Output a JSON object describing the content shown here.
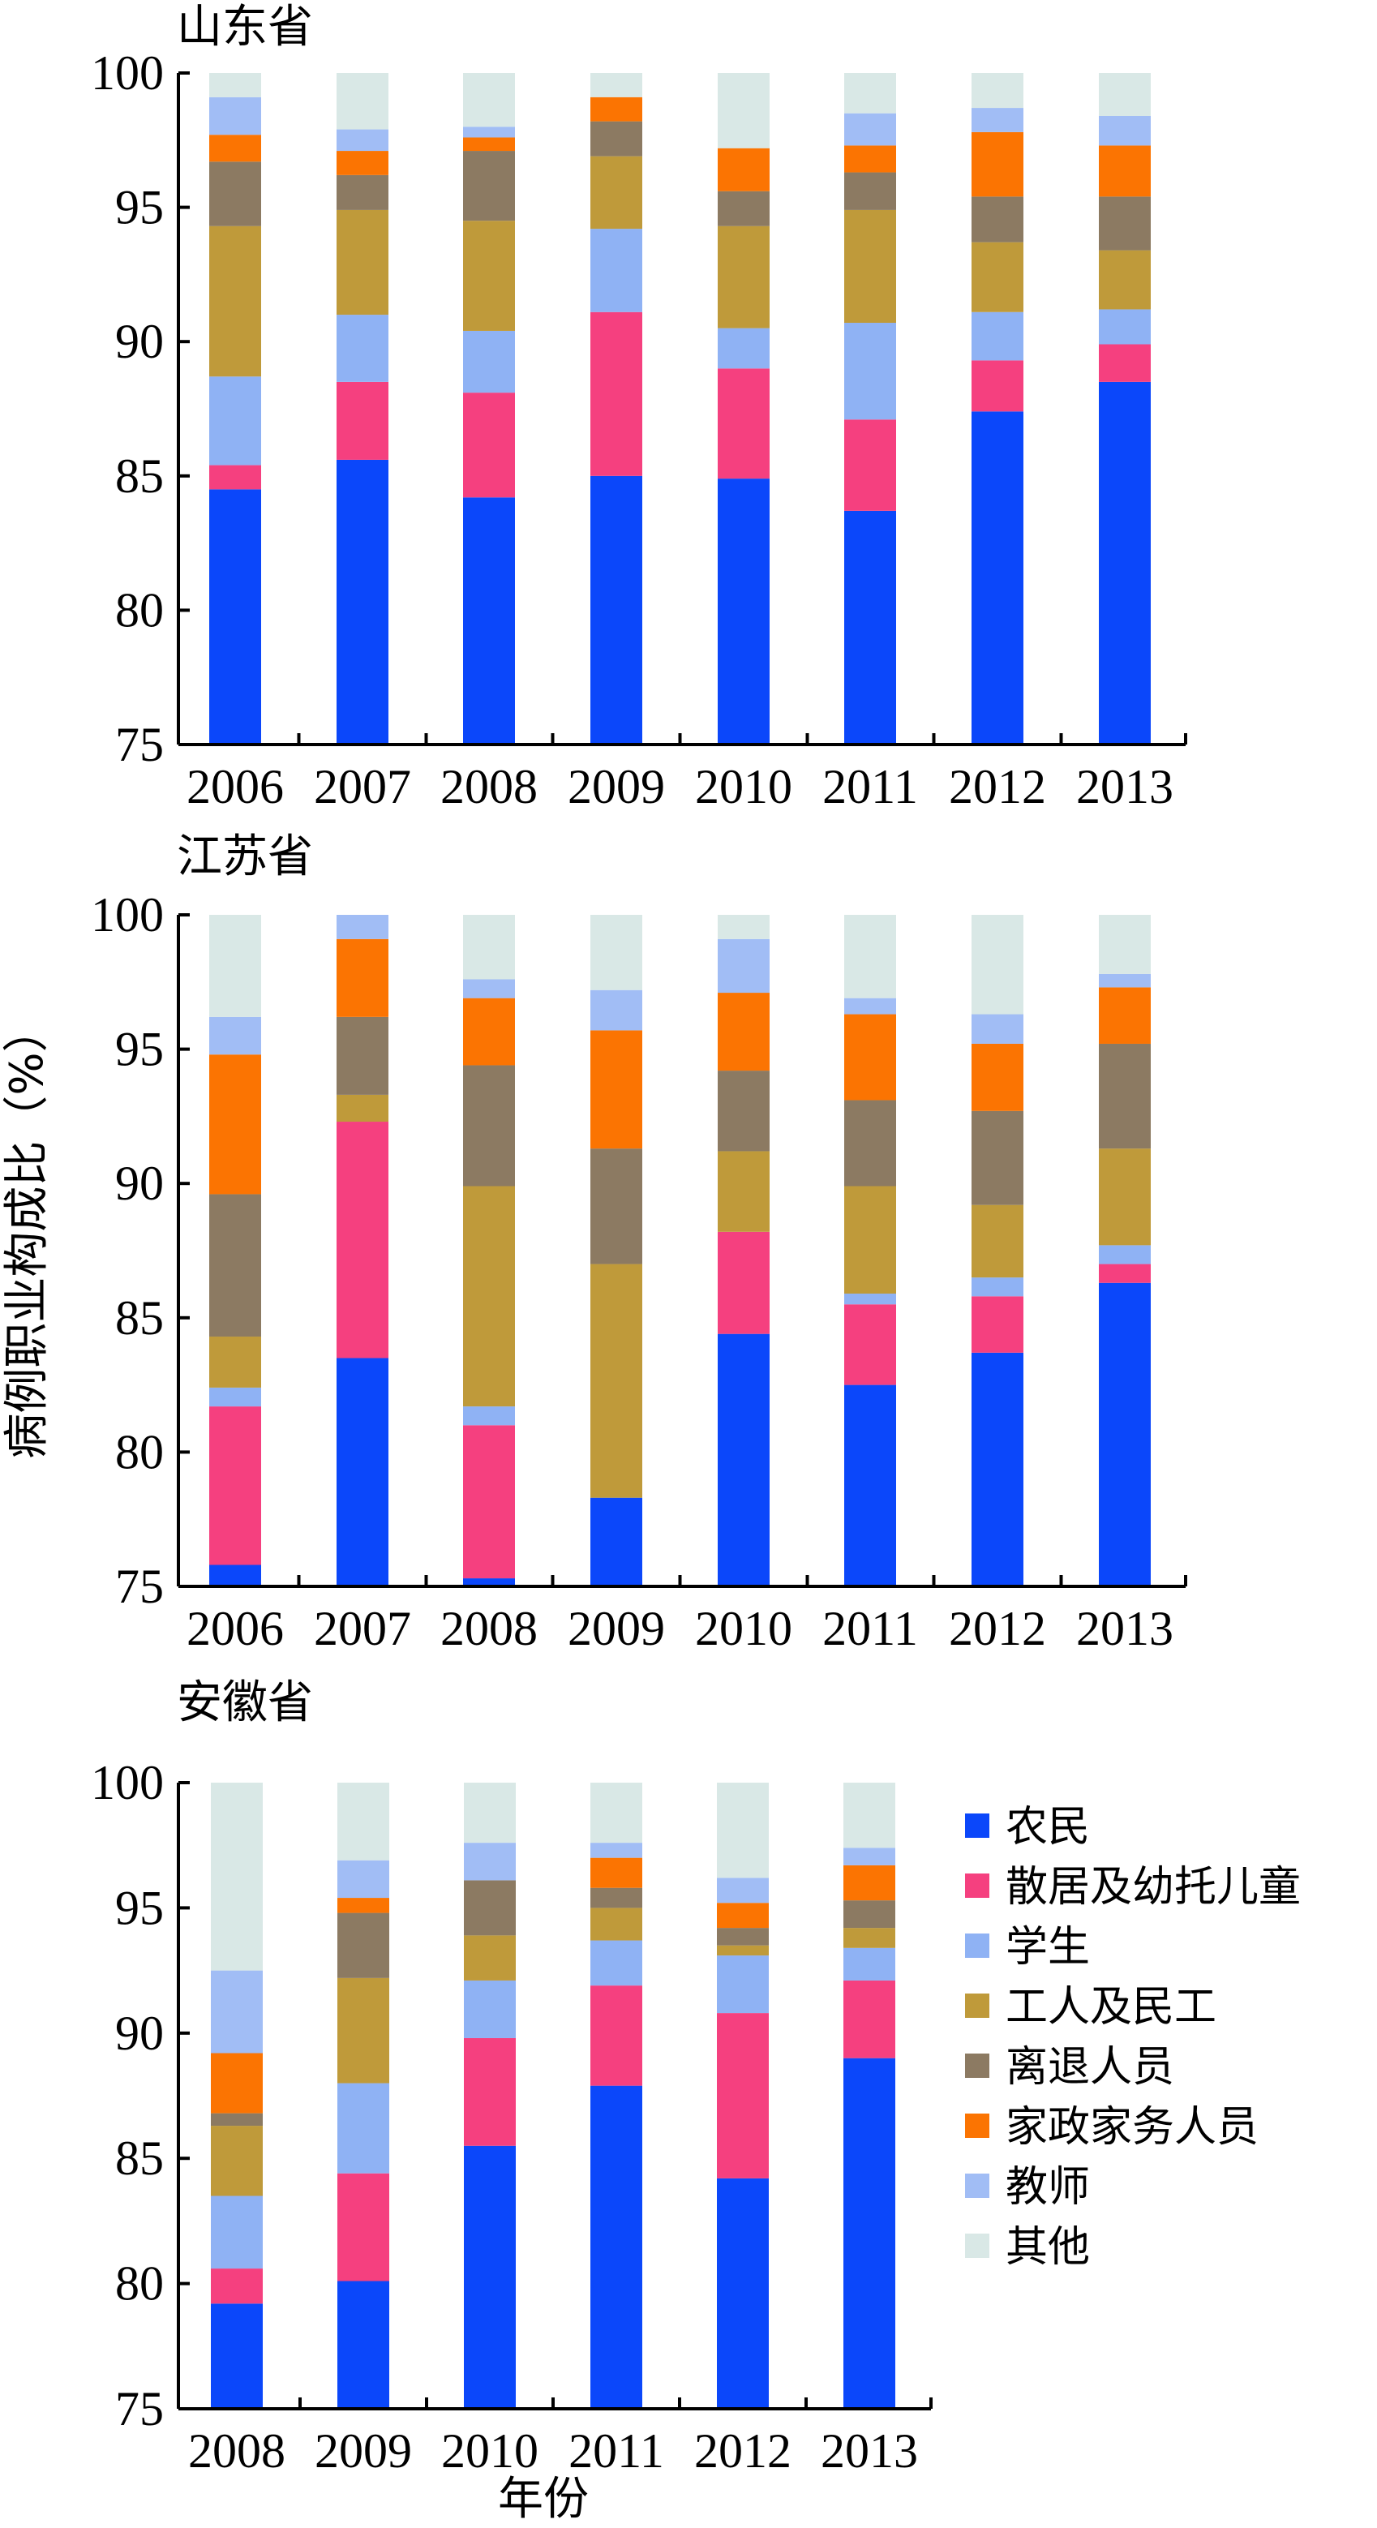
{
  "y_axis_label": "病例职业构成比（%）",
  "x_axis_label": "年份",
  "categories": [
    {
      "name": "农民",
      "color": "#0b47fa"
    },
    {
      "name": "散居及幼托儿童",
      "color": "#f5407f"
    },
    {
      "name": "学生",
      "color": "#8fb2f4"
    },
    {
      "name": "工人及民工",
      "color": "#bf9a3a"
    },
    {
      "name": "离退人员",
      "color": "#8c7a62"
    },
    {
      "name": "家政家务人员",
      "color": "#fb7402"
    },
    {
      "name": "教师",
      "color": "#a1bdf5"
    },
    {
      "name": "其他",
      "color": "#d9e8e6"
    }
  ],
  "chart_data": [
    {
      "type": "bar",
      "stacked": true,
      "title": "山东省",
      "ylim": [
        75,
        100
      ],
      "yticks": [
        "75",
        "80",
        "85",
        "90",
        "95",
        "100"
      ],
      "categories": [
        "2006",
        "2007",
        "2008",
        "2009",
        "2010",
        "2011",
        "2012",
        "2013"
      ],
      "series": [
        {
          "name": "农民",
          "cumulative": [
            84.5,
            85.6,
            84.2,
            85.0,
            84.9,
            83.7,
            87.4,
            88.5
          ]
        },
        {
          "name": "散居及幼托儿童",
          "cumulative": [
            85.4,
            88.5,
            88.1,
            91.1,
            89.0,
            87.1,
            89.3,
            89.9
          ]
        },
        {
          "name": "学生",
          "cumulative": [
            88.7,
            91.0,
            90.4,
            94.2,
            90.5,
            90.7,
            91.1,
            91.2
          ]
        },
        {
          "name": "工人及民工",
          "cumulative": [
            94.3,
            94.9,
            94.5,
            96.9,
            94.3,
            94.9,
            93.7,
            93.4
          ]
        },
        {
          "name": "离退人员",
          "cumulative": [
            96.7,
            96.2,
            97.1,
            98.2,
            95.6,
            96.3,
            95.4,
            95.4
          ]
        },
        {
          "name": "家政家务人员",
          "cumulative": [
            97.7,
            97.1,
            97.6,
            99.1,
            97.2,
            97.3,
            97.8,
            97.3
          ]
        },
        {
          "name": "教师",
          "cumulative": [
            99.1,
            97.9,
            98.0,
            99.1,
            97.2,
            98.5,
            98.7,
            98.4
          ]
        },
        {
          "name": "其他",
          "cumulative": [
            100,
            100,
            100,
            100,
            100,
            100,
            100,
            100
          ]
        }
      ]
    },
    {
      "type": "bar",
      "stacked": true,
      "title": "江苏省",
      "ylim": [
        75,
        100
      ],
      "yticks": [
        "75",
        "80",
        "85",
        "90",
        "95",
        "100"
      ],
      "categories": [
        "2006",
        "2007",
        "2008",
        "2009",
        "2010",
        "2011",
        "2012",
        "2013"
      ],
      "series": [
        {
          "name": "农民",
          "cumulative": [
            75.8,
            83.5,
            75.3,
            78.3,
            84.4,
            82.5,
            83.7,
            86.3
          ]
        },
        {
          "name": "散居及幼托儿童",
          "cumulative": [
            81.7,
            92.3,
            81.0,
            78.3,
            88.2,
            85.5,
            85.8,
            87.0
          ]
        },
        {
          "name": "学生",
          "cumulative": [
            82.4,
            92.3,
            81.7,
            78.3,
            88.2,
            85.9,
            86.5,
            87.7
          ]
        },
        {
          "name": "工人及民工",
          "cumulative": [
            84.3,
            93.3,
            89.9,
            87.0,
            91.2,
            89.9,
            89.2,
            91.3
          ]
        },
        {
          "name": "离退人员",
          "cumulative": [
            89.6,
            96.2,
            94.4,
            91.3,
            94.2,
            93.1,
            92.7,
            95.2
          ]
        },
        {
          "name": "家政家务人员",
          "cumulative": [
            94.8,
            99.1,
            96.9,
            95.7,
            97.1,
            96.3,
            95.2,
            97.3
          ]
        },
        {
          "name": "教师",
          "cumulative": [
            96.2,
            100,
            97.6,
            97.2,
            99.1,
            96.9,
            96.3,
            97.8
          ]
        },
        {
          "name": "其他",
          "cumulative": [
            100,
            100,
            100,
            100,
            100,
            100,
            100,
            100
          ]
        }
      ]
    },
    {
      "type": "bar",
      "stacked": true,
      "title": "安徽省",
      "ylim": [
        75,
        100
      ],
      "yticks": [
        "75",
        "80",
        "85",
        "90",
        "95",
        "100"
      ],
      "categories": [
        "2008",
        "2009",
        "2010",
        "2011",
        "2012",
        "2013"
      ],
      "series": [
        {
          "name": "农民",
          "cumulative": [
            79.2,
            80.1,
            85.5,
            87.9,
            84.2,
            89.0
          ]
        },
        {
          "name": "散居及幼托儿童",
          "cumulative": [
            80.6,
            84.4,
            89.8,
            91.9,
            90.8,
            92.1
          ]
        },
        {
          "name": "学生",
          "cumulative": [
            83.5,
            88.0,
            92.1,
            93.7,
            93.1,
            93.4
          ]
        },
        {
          "name": "工人及民工",
          "cumulative": [
            86.3,
            92.2,
            93.9,
            95.0,
            93.5,
            94.2
          ]
        },
        {
          "name": "离退人员",
          "cumulative": [
            86.8,
            94.8,
            96.1,
            95.8,
            94.2,
            95.3
          ]
        },
        {
          "name": "家政家务人员",
          "cumulative": [
            89.2,
            95.4,
            96.1,
            97.0,
            95.2,
            96.7
          ]
        },
        {
          "name": "教师",
          "cumulative": [
            92.5,
            96.9,
            97.6,
            97.6,
            96.2,
            97.4
          ]
        },
        {
          "name": "其他",
          "cumulative": [
            100,
            100,
            100,
            100,
            100,
            100
          ]
        }
      ]
    }
  ]
}
